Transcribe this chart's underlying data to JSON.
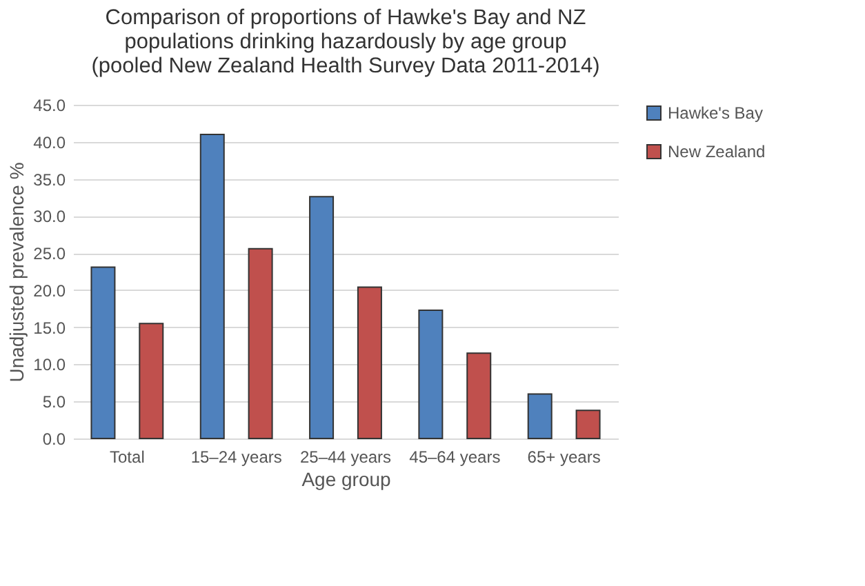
{
  "chart_data": {
    "type": "bar",
    "title": [
      "Comparison of proportions of Hawke's Bay and NZ",
      "populations drinking hazardously by age group",
      "(pooled New Zealand Health Survey Data 2011-2014)"
    ],
    "xlabel": "Age group",
    "ylabel": "Unadjusted prevalence %",
    "categories": [
      "Total",
      "15–24 years",
      "25–44 years",
      "45–64 years",
      "65+ years"
    ],
    "series": [
      {
        "name": "Hawke's Bay",
        "color": "#4f81bd",
        "values": [
          23.1,
          41.0,
          32.6,
          17.3,
          6.0
        ]
      },
      {
        "name": "New Zealand",
        "color": "#c0504d",
        "values": [
          15.5,
          25.6,
          20.4,
          11.5,
          3.8
        ]
      }
    ],
    "ylim": [
      0,
      45
    ],
    "yticks": [
      {
        "value": 0,
        "label": "0.0"
      },
      {
        "value": 5,
        "label": "5.0"
      },
      {
        "value": 10,
        "label": "10.0"
      },
      {
        "value": 15,
        "label": "15.0"
      },
      {
        "value": 20,
        "label": "20.0"
      },
      {
        "value": 25,
        "label": "25.0"
      },
      {
        "value": 30,
        "label": "30.0"
      },
      {
        "value": 35,
        "label": "35.0"
      },
      {
        "value": 40,
        "label": "40.0"
      },
      {
        "value": 45,
        "label": "45.0"
      }
    ],
    "grid": "y",
    "legend": "right"
  }
}
